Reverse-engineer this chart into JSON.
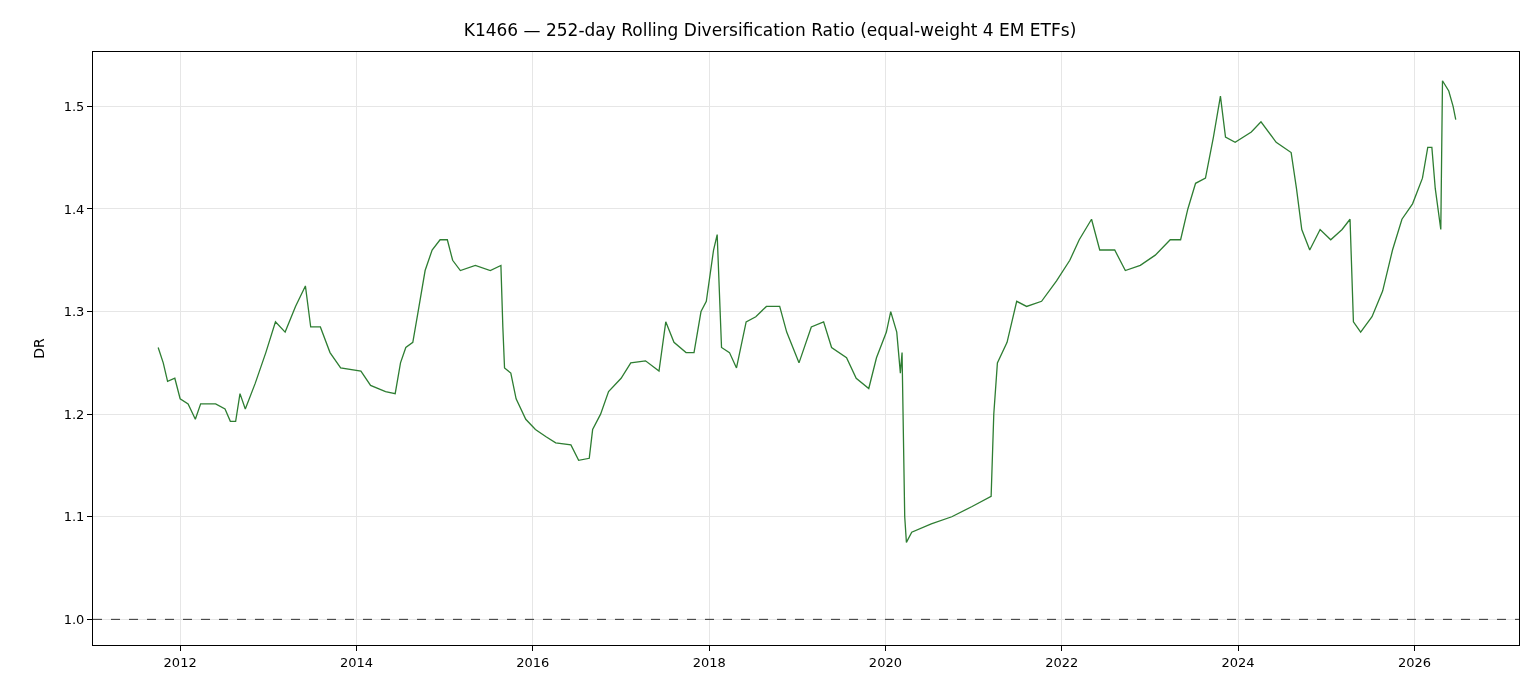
{
  "chart_data": {
    "type": "line",
    "title": "K1466 — 252-day Rolling Diversification Ratio (equal-weight 4 EM ETFs)",
    "ylabel": "DR",
    "x": [
      "2011-10-02",
      "2011-10-23",
      "2011-11-10",
      "2011-12-10",
      "2012-01-01",
      "2012-02-03",
      "2012-03-04",
      "2012-03-26",
      "2012-05-27",
      "2012-07-05",
      "2012-07-27",
      "2012-08-18",
      "2012-09-05",
      "2012-09-27",
      "2012-11-07",
      "2012-12-21",
      "2013-01-30",
      "2013-03-11",
      "2013-04-23",
      "2013-06-03",
      "2013-06-25",
      "2013-08-04",
      "2013-09-13",
      "2013-10-27",
      "2014-01-19",
      "2014-02-28",
      "2014-05-01",
      "2014-06-10",
      "2014-07-02",
      "2014-07-24",
      "2014-08-22",
      "2014-09-13",
      "2014-10-12",
      "2014-11-10",
      "2014-12-13",
      "2015-01-12",
      "2015-02-03",
      "2015-03-07",
      "2015-05-08",
      "2015-07-09",
      "2015-08-22",
      "2015-08-30",
      "2015-09-06",
      "2015-10-02",
      "2015-10-24",
      "2015-12-03",
      "2016-01-12",
      "2016-02-25",
      "2016-04-05",
      "2016-06-07",
      "2016-07-09",
      "2016-08-22",
      "2016-09-05",
      "2016-10-08",
      "2016-11-10",
      "2017-01-01",
      "2017-02-10",
      "2017-04-12",
      "2017-06-07",
      "2017-07-05",
      "2017-08-08",
      "2017-09-27",
      "2017-10-30",
      "2017-11-28",
      "2017-12-20",
      "2018-01-19",
      "2018-02-03",
      "2018-02-21",
      "2018-03-26",
      "2018-04-24",
      "2018-06-03",
      "2018-07-13",
      "2018-08-26",
      "2018-10-20",
      "2018-11-18",
      "2019-01-08",
      "2019-02-28",
      "2019-04-20",
      "2019-05-23",
      "2019-07-24",
      "2019-09-02",
      "2019-10-24",
      "2019-11-25",
      "2020-01-05",
      "2020-01-23",
      "2020-02-17",
      "2020-03-03",
      "2020-03-10",
      "2020-03-21",
      "2020-03-28",
      "2020-04-19",
      "2020-07-09",
      "2020-10-02",
      "2020-12-25",
      "2021-03-14",
      "2021-03-25",
      "2021-04-09",
      "2021-05-19",
      "2021-06-28",
      "2021-08-08",
      "2021-10-09",
      "2021-12-10",
      "2022-02-03",
      "2022-03-14",
      "2022-05-04",
      "2022-06-07",
      "2022-08-08",
      "2022-09-21",
      "2022-11-22",
      "2023-01-23",
      "2023-03-26",
      "2023-05-08",
      "2023-06-07",
      "2023-07-09",
      "2023-08-19",
      "2023-09-21",
      "2023-10-20",
      "2023-11-10",
      "2023-12-20",
      "2024-02-25",
      "2024-04-05",
      "2024-06-07",
      "2024-08-08",
      "2024-08-30",
      "2024-09-21",
      "2024-10-24",
      "2024-12-06",
      "2025-01-19",
      "2025-03-07",
      "2025-04-09",
      "2025-04-23",
      "2025-05-23",
      "2025-07-09",
      "2025-08-22",
      "2025-10-02",
      "2025-11-10",
      "2025-12-24",
      "2026-02-03",
      "2026-02-25",
      "2026-03-14",
      "2026-03-28",
      "2026-04-20",
      "2026-04-27",
      "2026-05-23",
      "2026-06-10",
      "2026-06-21"
    ],
    "series": [
      {
        "color": "#2e7d32",
        "values": [
          1.265,
          1.25,
          1.232,
          1.235,
          1.215,
          1.21,
          1.195,
          1.21,
          1.21,
          1.205,
          1.193,
          1.193,
          1.22,
          1.205,
          1.23,
          1.26,
          1.29,
          1.28,
          1.305,
          1.325,
          1.285,
          1.285,
          1.26,
          1.245,
          1.242,
          1.228,
          1.222,
          1.22,
          1.25,
          1.265,
          1.27,
          1.3,
          1.34,
          1.36,
          1.37,
          1.37,
          1.35,
          1.34,
          1.345,
          1.34,
          1.345,
          1.285,
          1.245,
          1.24,
          1.215,
          1.195,
          1.185,
          1.178,
          1.172,
          1.17,
          1.155,
          1.157,
          1.185,
          1.2,
          1.222,
          1.235,
          1.25,
          1.252,
          1.242,
          1.29,
          1.27,
          1.26,
          1.26,
          1.3,
          1.31,
          1.36,
          1.375,
          1.265,
          1.26,
          1.245,
          1.29,
          1.295,
          1.305,
          1.305,
          1.28,
          1.25,
          1.285,
          1.29,
          1.265,
          1.255,
          1.235,
          1.225,
          1.255,
          1.28,
          1.3,
          1.28,
          1.24,
          1.26,
          1.1,
          1.075,
          1.085,
          1.093,
          1.1,
          1.11,
          1.12,
          1.2,
          1.25,
          1.27,
          1.31,
          1.305,
          1.31,
          1.33,
          1.35,
          1.37,
          1.39,
          1.36,
          1.36,
          1.34,
          1.345,
          1.355,
          1.37,
          1.37,
          1.4,
          1.425,
          1.43,
          1.47,
          1.51,
          1.47,
          1.465,
          1.475,
          1.485,
          1.465,
          1.455,
          1.42,
          1.38,
          1.36,
          1.38,
          1.37,
          1.38,
          1.39,
          1.29,
          1.28,
          1.295,
          1.32,
          1.36,
          1.39,
          1.405,
          1.43,
          1.46,
          1.46,
          1.42,
          1.38,
          1.525,
          1.515,
          1.5,
          1.487
        ]
      }
    ],
    "xlim": [
      "2011-01-05",
      "2027-03-10"
    ],
    "xticks": [
      {
        "value": "2012-01-01",
        "label": "2012"
      },
      {
        "value": "2014-01-01",
        "label": "2014"
      },
      {
        "value": "2016-01-01",
        "label": "2016"
      },
      {
        "value": "2018-01-01",
        "label": "2018"
      },
      {
        "value": "2020-01-01",
        "label": "2020"
      },
      {
        "value": "2022-01-01",
        "label": "2022"
      },
      {
        "value": "2024-01-01",
        "label": "2024"
      },
      {
        "value": "2026-01-01",
        "label": "2026"
      }
    ],
    "ylim": [
      0.975,
      1.553
    ],
    "yticks": [
      {
        "value": 1.0,
        "label": "1.0"
      },
      {
        "value": 1.1,
        "label": "1.1"
      },
      {
        "value": 1.2,
        "label": "1.2"
      },
      {
        "value": 1.3,
        "label": "1.3"
      },
      {
        "value": 1.4,
        "label": "1.4"
      },
      {
        "value": 1.5,
        "label": "1.5"
      }
    ],
    "ref_lines": [
      {
        "axis": "y",
        "value": 1.0,
        "color": "#000000",
        "line_style": "dashed"
      }
    ],
    "grid": true
  }
}
